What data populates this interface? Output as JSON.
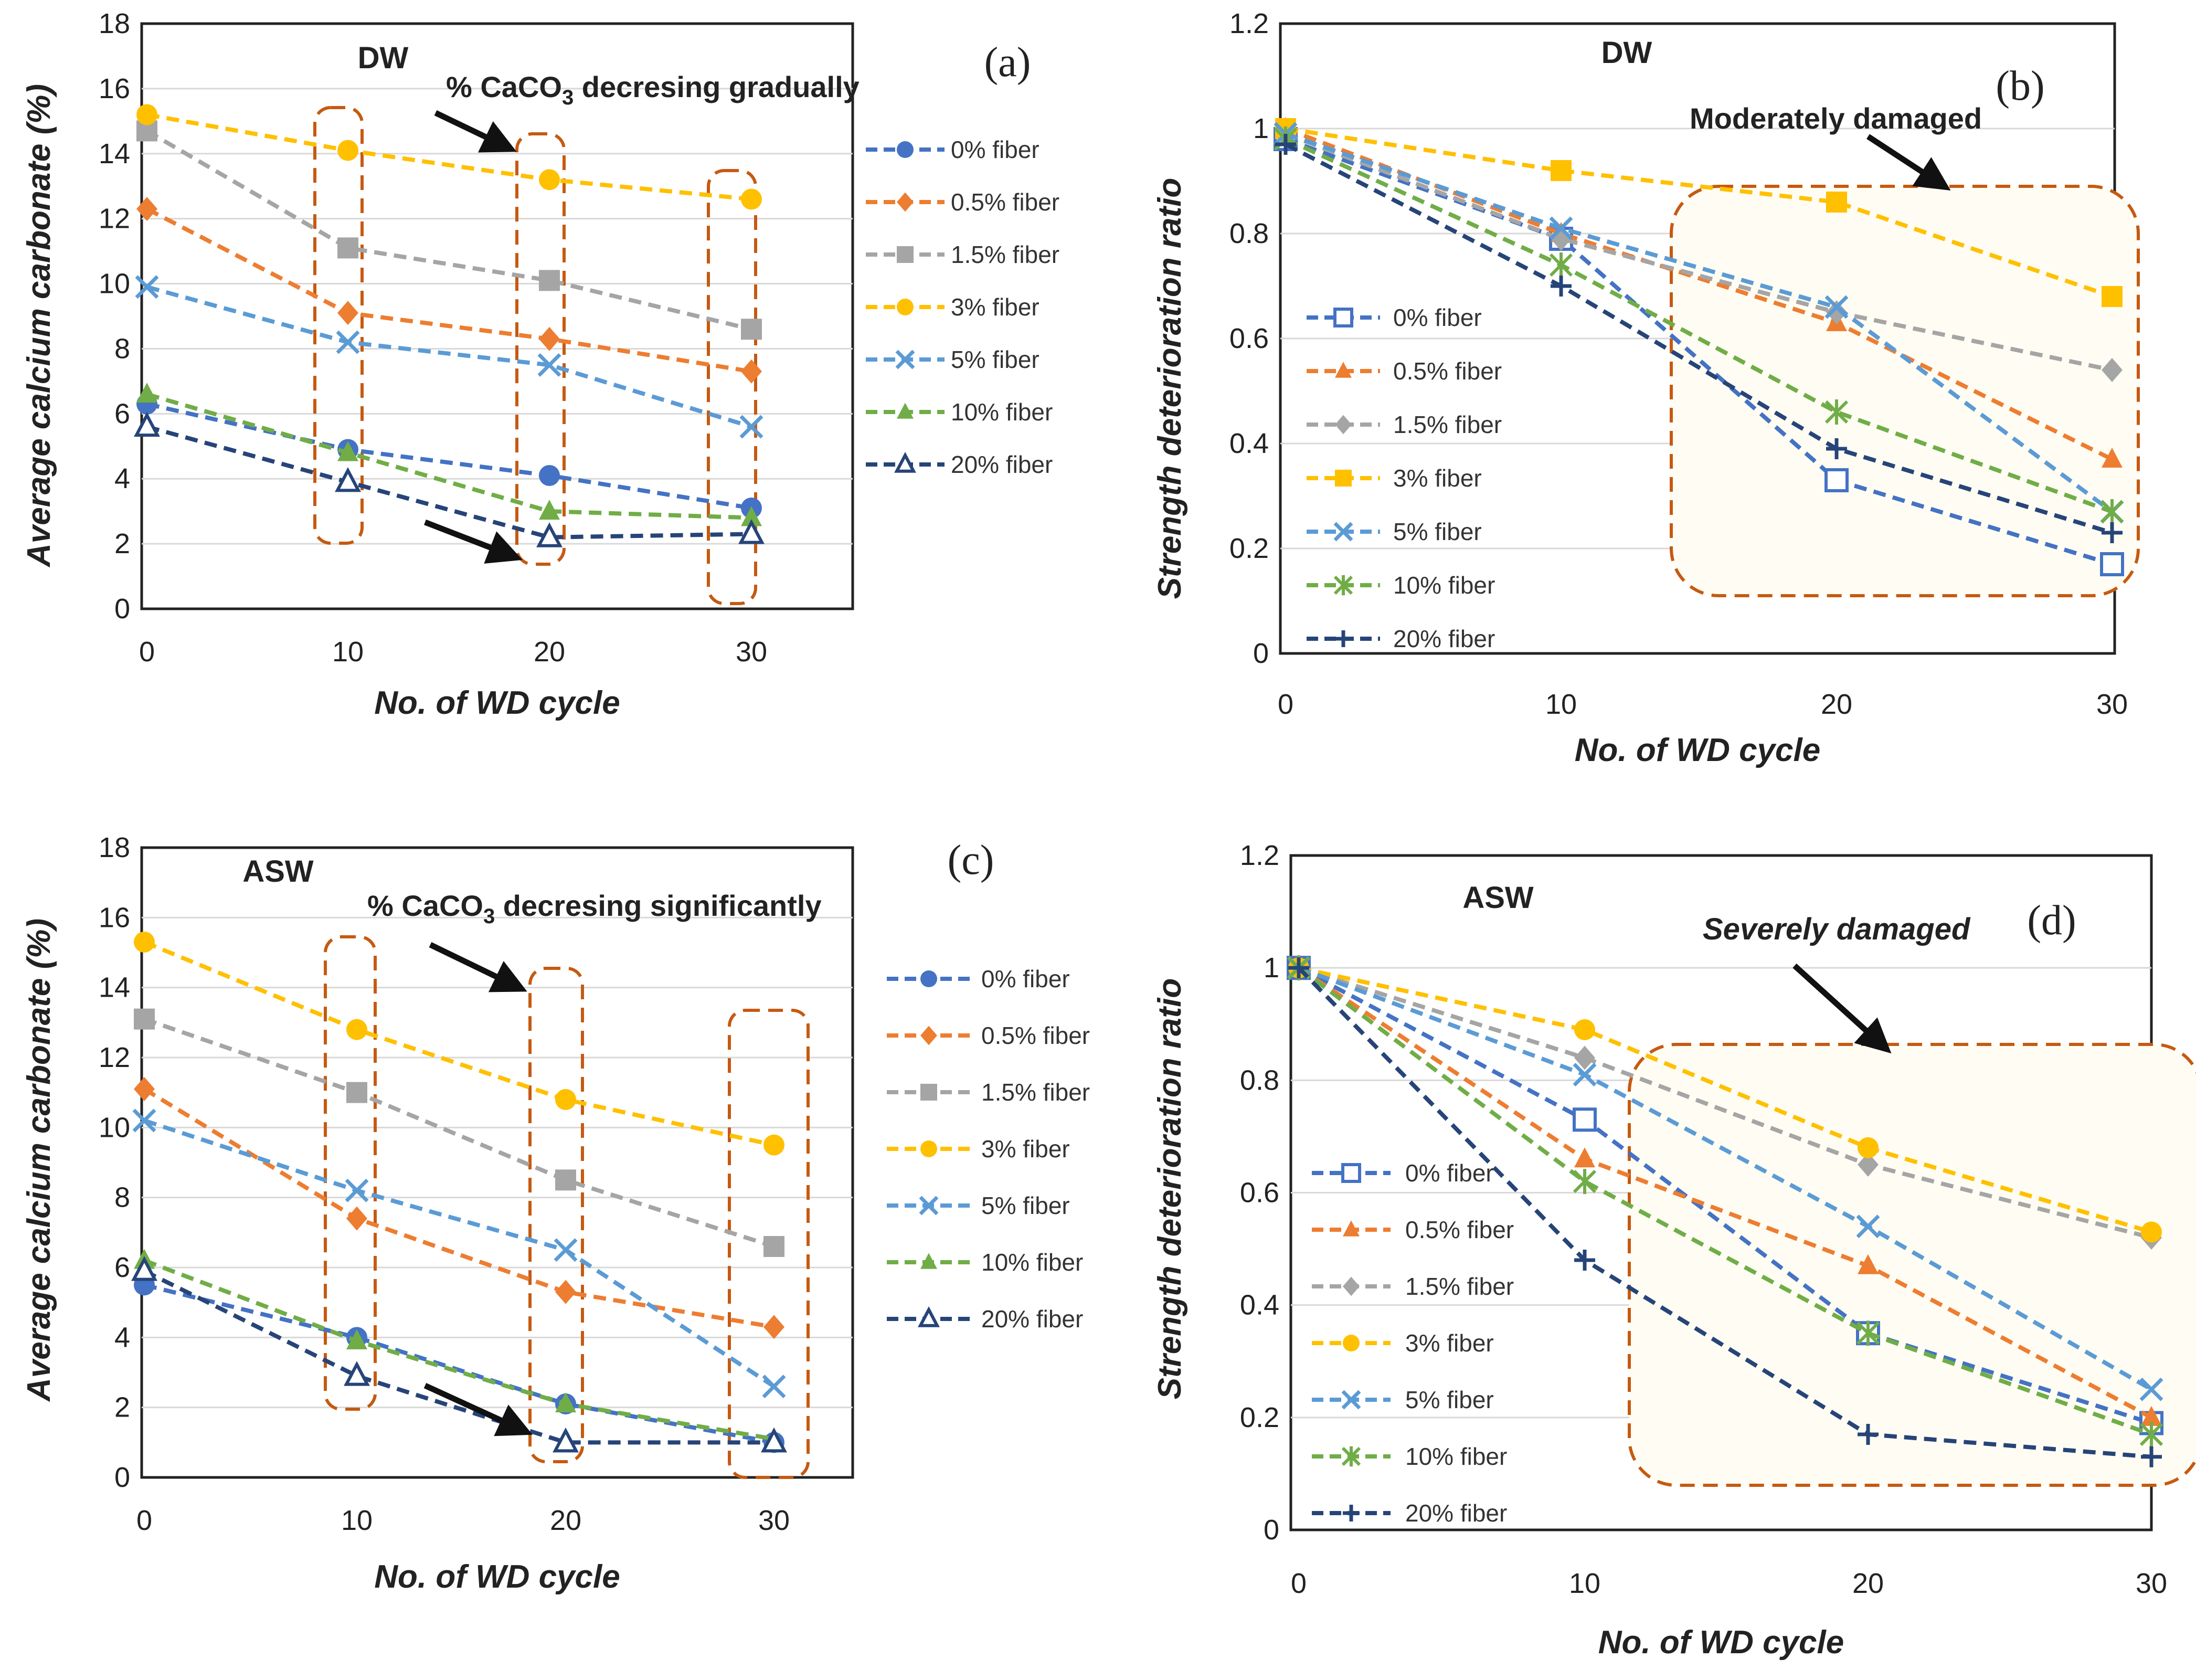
{
  "colors": {
    "s0": "#4472C4",
    "s05": "#ED7D31",
    "s15": "#A5A5A5",
    "s3": "#FFC000",
    "s5": "#5B9BD5",
    "s10": "#70AD47",
    "s20": "#264478",
    "box": "#C55A11",
    "grid": "#D9D9D9",
    "axis": "#222222"
  },
  "chart_data": [
    {
      "type": "line",
      "panel_label": "(a)",
      "environment": "DW",
      "annotation": {
        "prefix": "% CaCO",
        "subscript": "3",
        "suffix": " decresing gradually"
      },
      "xlabel": "No. of WD cycle",
      "ylabel": "Average calcium carbonate (%)",
      "x": [
        0,
        10,
        20,
        30
      ],
      "xticks": [
        "0",
        "10",
        "20",
        "30"
      ],
      "ylim": [
        0,
        18
      ],
      "yticks": [
        "0",
        "2",
        "4",
        "6",
        "8",
        "10",
        "12",
        "14",
        "16",
        "18"
      ],
      "series": [
        {
          "name": "0% fiber",
          "marker": "circle",
          "color": "#4472C4",
          "values": [
            6.3,
            4.9,
            4.1,
            3.1
          ]
        },
        {
          "name": "0.5% fiber",
          "marker": "diamond",
          "color": "#ED7D31",
          "values": [
            12.3,
            9.1,
            8.3,
            7.3
          ]
        },
        {
          "name": "1.5% fiber",
          "marker": "square",
          "color": "#A5A5A5",
          "values": [
            14.7,
            11.1,
            10.1,
            8.6
          ]
        },
        {
          "name": "3% fiber",
          "marker": "circle",
          "color": "#FFC000",
          "values": [
            15.2,
            14.1,
            13.2,
            12.6
          ]
        },
        {
          "name": "5% fiber",
          "marker": "x",
          "color": "#5B9BD5",
          "values": [
            9.9,
            8.2,
            7.5,
            5.6
          ]
        },
        {
          "name": "10% fiber",
          "marker": "triangle",
          "color": "#70AD47",
          "values": [
            6.6,
            4.8,
            3.0,
            2.8
          ]
        },
        {
          "name": "20% fiber",
          "marker": "triangle-open",
          "color": "#264478",
          "values": [
            5.6,
            3.9,
            2.2,
            2.3
          ]
        }
      ]
    },
    {
      "type": "line",
      "panel_label": "(b)",
      "environment": "DW",
      "annotation": {
        "text": "Moderately damaged"
      },
      "xlabel": "No. of WD cycle",
      "ylabel": "Strength deterioration ratio",
      "x": [
        0,
        10,
        20,
        30
      ],
      "xticks": [
        "0",
        "10",
        "20",
        "30"
      ],
      "ylim": [
        0,
        1.2
      ],
      "yticks": [
        "0",
        "0.2",
        "0.4",
        "0.6",
        "0.8",
        "1",
        "1.2"
      ],
      "series": [
        {
          "name": "0% fiber",
          "marker": "square-open",
          "color": "#4472C4",
          "values": [
            0.98,
            0.79,
            0.33,
            0.17
          ]
        },
        {
          "name": "0.5% fiber",
          "marker": "triangle",
          "color": "#ED7D31",
          "values": [
            1.0,
            0.8,
            0.63,
            0.37
          ]
        },
        {
          "name": "1.5% fiber",
          "marker": "diamond",
          "color": "#A5A5A5",
          "values": [
            0.99,
            0.79,
            0.65,
            0.54
          ]
        },
        {
          "name": "3% fiber",
          "marker": "square",
          "color": "#FFC000",
          "values": [
            1.0,
            0.92,
            0.86,
            0.68
          ]
        },
        {
          "name": "5% fiber",
          "marker": "x",
          "color": "#5B9BD5",
          "values": [
            0.99,
            0.81,
            0.66,
            0.27
          ]
        },
        {
          "name": "10% fiber",
          "marker": "star",
          "color": "#70AD47",
          "values": [
            0.98,
            0.74,
            0.46,
            0.27
          ]
        },
        {
          "name": "20% fiber",
          "marker": "plus",
          "color": "#264478",
          "values": [
            0.97,
            0.7,
            0.39,
            0.23
          ]
        }
      ]
    },
    {
      "type": "line",
      "panel_label": "(c)",
      "environment": "ASW",
      "annotation": {
        "prefix": "% CaCO",
        "subscript": "3",
        "suffix": " decresing significantly"
      },
      "xlabel": "No. of WD cycle",
      "ylabel": "Average calcium carbonate (%)",
      "x": [
        0,
        10,
        20,
        30
      ],
      "xticks": [
        "0",
        "10",
        "20",
        "30"
      ],
      "ylim": [
        0,
        18
      ],
      "yticks": [
        "0",
        "2",
        "4",
        "6",
        "8",
        "10",
        "12",
        "14",
        "16",
        "18"
      ],
      "series": [
        {
          "name": "0% fiber",
          "marker": "circle",
          "color": "#4472C4",
          "values": [
            5.5,
            4.0,
            2.1,
            1.0
          ]
        },
        {
          "name": "0.5% fiber",
          "marker": "diamond",
          "color": "#ED7D31",
          "values": [
            11.1,
            7.4,
            5.3,
            4.3
          ]
        },
        {
          "name": "1.5% fiber",
          "marker": "square",
          "color": "#A5A5A5",
          "values": [
            13.1,
            11.0,
            8.5,
            6.6
          ]
        },
        {
          "name": "3% fiber",
          "marker": "circle",
          "color": "#FFC000",
          "values": [
            15.3,
            12.8,
            10.8,
            9.5
          ]
        },
        {
          "name": "5% fiber",
          "marker": "x",
          "color": "#5B9BD5",
          "values": [
            10.2,
            8.2,
            6.5,
            2.6
          ]
        },
        {
          "name": "10% fiber",
          "marker": "triangle",
          "color": "#70AD47",
          "values": [
            6.2,
            3.9,
            2.1,
            1.1
          ]
        },
        {
          "name": "20% fiber",
          "marker": "triangle-open",
          "color": "#264478",
          "values": [
            5.9,
            2.9,
            1.0,
            1.0
          ]
        }
      ]
    },
    {
      "type": "line",
      "panel_label": "(d)",
      "environment": "ASW",
      "annotation": {
        "text": "Severely damaged"
      },
      "xlabel": "No. of WD cycle",
      "ylabel": "Strength deterioration ratio",
      "x": [
        0,
        10,
        20,
        30
      ],
      "xticks": [
        "0",
        "10",
        "20",
        "30"
      ],
      "ylim": [
        0,
        1.2
      ],
      "yticks": [
        "0",
        "0.2",
        "0.4",
        "0.6",
        "0.8",
        "1",
        "1.2"
      ],
      "series": [
        {
          "name": "0% fiber",
          "marker": "square-open",
          "color": "#4472C4",
          "values": [
            1.0,
            0.73,
            0.35,
            0.19
          ]
        },
        {
          "name": "0.5% fiber",
          "marker": "triangle",
          "color": "#ED7D31",
          "values": [
            1.0,
            0.66,
            0.47,
            0.2
          ]
        },
        {
          "name": "1.5% fiber",
          "marker": "diamond",
          "color": "#A5A5A5",
          "values": [
            1.0,
            0.84,
            0.65,
            0.52
          ]
        },
        {
          "name": "3% fiber",
          "marker": "circle",
          "color": "#FFC000",
          "values": [
            1.0,
            0.89,
            0.68,
            0.53
          ]
        },
        {
          "name": "5% fiber",
          "marker": "x",
          "color": "#5B9BD5",
          "values": [
            1.0,
            0.81,
            0.54,
            0.25
          ]
        },
        {
          "name": "10% fiber",
          "marker": "star",
          "color": "#70AD47",
          "values": [
            1.0,
            0.62,
            0.35,
            0.17
          ]
        },
        {
          "name": "20% fiber",
          "marker": "plus",
          "color": "#264478",
          "values": [
            1.0,
            0.48,
            0.17,
            0.13
          ]
        }
      ]
    }
  ]
}
